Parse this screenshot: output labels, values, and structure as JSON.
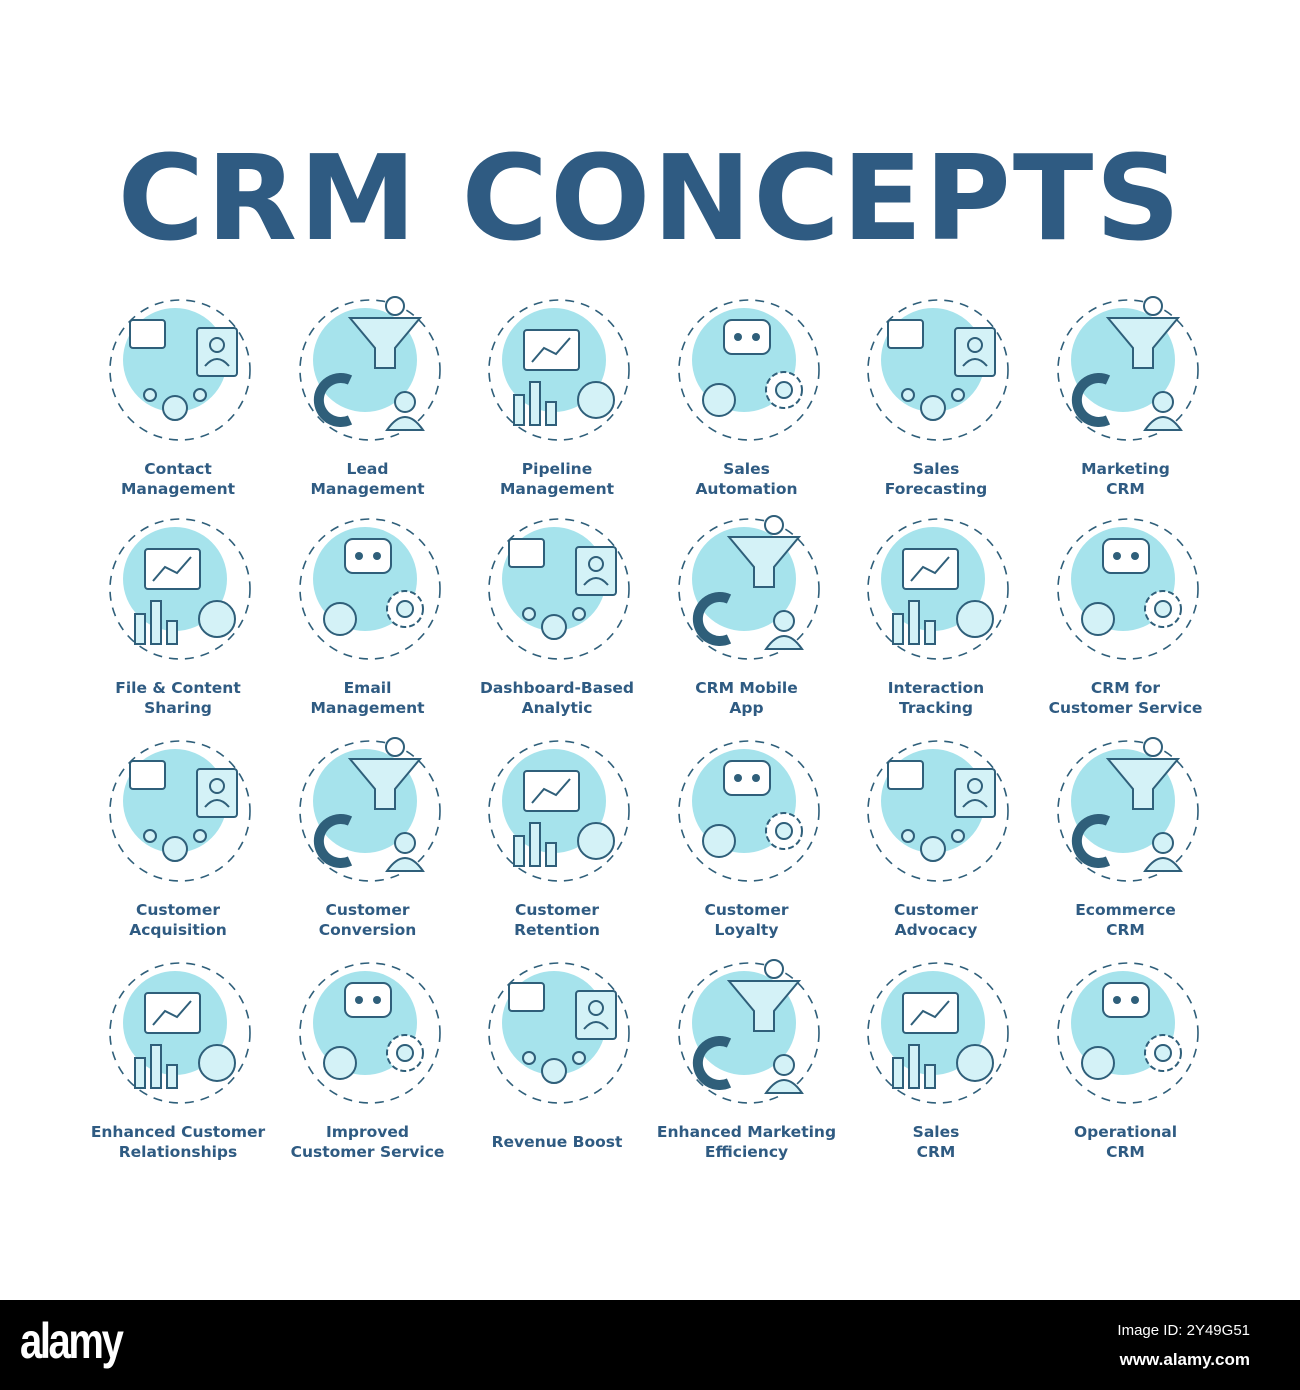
{
  "title": "CRM CONCEPTS",
  "colors": {
    "text": "#2f5b82",
    "stroke": "#2f5f7a",
    "fill": "#a6e3ec",
    "icon_fill": "#d4f2f7"
  },
  "items": [
    {
      "lines": [
        "Contact",
        "Management"
      ],
      "icon": "contact-book-icon"
    },
    {
      "lines": [
        "Lead",
        "Management"
      ],
      "icon": "funnel-magnet-icon"
    },
    {
      "lines": [
        "Pipeline",
        "Management"
      ],
      "icon": "pipeline-funnel-icon"
    },
    {
      "lines": [
        "Sales",
        "Automation"
      ],
      "icon": "robot-icon"
    },
    {
      "lines": [
        "Sales",
        "Forecasting"
      ],
      "icon": "crystal-ball-chart-icon"
    },
    {
      "lines": [
        "Marketing",
        "CRM"
      ],
      "icon": "megaphone-icon"
    },
    {
      "lines": [
        "File & Content",
        "Sharing"
      ],
      "icon": "file-share-icon"
    },
    {
      "lines": [
        "Email",
        "Management"
      ],
      "icon": "email-icon"
    },
    {
      "lines": [
        "Dashboard-Based",
        "Analytic"
      ],
      "icon": "dashboard-chart-icon"
    },
    {
      "lines": [
        "CRM Mobile",
        "App"
      ],
      "icon": "mobile-devices-icon"
    },
    {
      "lines": [
        "Interaction",
        "Tracking"
      ],
      "icon": "envelope-clock-icon"
    },
    {
      "lines": [
        "CRM for",
        "Customer Service"
      ],
      "icon": "headset-support-icon"
    },
    {
      "lines": [
        "Customer",
        "Acquisition"
      ],
      "icon": "magnet-people-icon"
    },
    {
      "lines": [
        "Customer",
        "Conversion"
      ],
      "icon": "handshake-card-icon"
    },
    {
      "lines": [
        "Customer",
        "Retention"
      ],
      "icon": "gift-card-icon"
    },
    {
      "lines": [
        "Customer",
        "Loyalty"
      ],
      "icon": "star-cart-icon"
    },
    {
      "lines": [
        "Customer",
        "Advocacy"
      ],
      "icon": "rating-stars-icon"
    },
    {
      "lines": [
        "Ecommerce",
        "CRM"
      ],
      "icon": "shopping-cart-icon"
    },
    {
      "lines": [
        "Enhanced Customer",
        "Relationships"
      ],
      "icon": "handshake-growth-icon"
    },
    {
      "lines": [
        "Improved",
        "Customer Service"
      ],
      "icon": "robot-hands-icon"
    },
    {
      "lines": [
        "Revenue Boost"
      ],
      "icon": "revenue-chart-icon"
    },
    {
      "lines": [
        "Enhanced Marketing",
        "Efficiency"
      ],
      "icon": "growth-megaphone-icon"
    },
    {
      "lines": [
        "Sales",
        "CRM"
      ],
      "icon": "price-tag-funnel-icon"
    },
    {
      "lines": [
        "Operational",
        "CRM"
      ],
      "icon": "gear-funnel-icon"
    }
  ],
  "watermark": {
    "logo": "alamy",
    "image_id": "Image ID: 2Y49G51",
    "site": "www.alamy.com"
  }
}
